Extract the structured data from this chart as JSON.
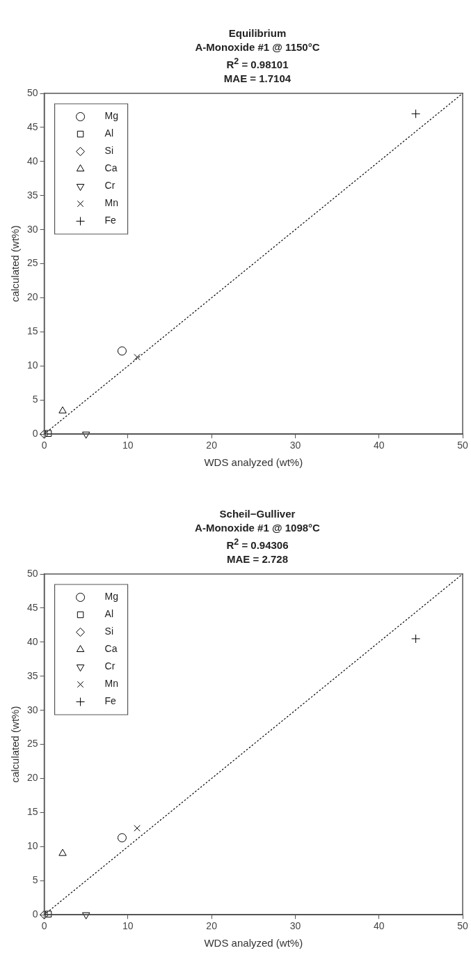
{
  "chart_data": [
    {
      "type": "scatter",
      "title": "Equilibrium\nA-Monoxide #1 @ 1150°C\nR$^{2}$ = 0.98101\nMAE = 1.7104",
      "xlabel": "WDS analyzed (wt%)",
      "ylabel": "calculated (wt%)",
      "xlim": [
        0,
        50
      ],
      "ylim": [
        0,
        50
      ],
      "xticks": [
        0,
        10,
        20,
        30,
        40,
        50
      ],
      "yticks": [
        0,
        5,
        10,
        15,
        20,
        25,
        30,
        35,
        40,
        45,
        50
      ],
      "grid": false,
      "legend": "top left",
      "series": [
        {
          "name": "Mg",
          "color": "#000000",
          "marker": "circle",
          "x": [
            9.3
          ],
          "values": [
            12.2
          ]
        },
        {
          "name": "Al",
          "color": "#000000",
          "marker": "square",
          "x": [
            0.5
          ],
          "values": [
            0.1
          ]
        },
        {
          "name": "Si",
          "color": "#000000",
          "marker": "diamond",
          "x": [
            0
          ],
          "values": [
            0
          ]
        },
        {
          "name": "Ca",
          "color": "#000000",
          "marker": "triangle",
          "x": [
            2.2
          ],
          "values": [
            3.4
          ]
        },
        {
          "name": "Cr",
          "color": "#000000",
          "marker": "triangle-down",
          "x": [
            5
          ],
          "values": [
            0
          ]
        },
        {
          "name": "Mn",
          "color": "#000000",
          "marker": "x",
          "x": [
            11.1
          ],
          "values": [
            11.3
          ]
        },
        {
          "name": "Fe",
          "color": "#000000",
          "marker": "plus",
          "x": [
            44.4
          ],
          "values": [
            47
          ]
        },
        {
          "type": "line",
          "color": "#000000",
          "line_style": "dotted",
          "marker": "none",
          "x": [
            0,
            50
          ],
          "values": [
            0,
            50
          ]
        }
      ]
    },
    {
      "type": "scatter",
      "title": "Scheil−Gulliver\nA-Monoxide #1 @ 1098°C\nR$^{2}$ = 0.94306\nMAE = 2.728",
      "xlabel": "WDS analyzed (wt%)",
      "ylabel": "calculated (wt%)",
      "xlim": [
        0,
        50
      ],
      "ylim": [
        0,
        50
      ],
      "xticks": [
        0,
        10,
        20,
        30,
        40,
        50
      ],
      "yticks": [
        0,
        5,
        10,
        15,
        20,
        25,
        30,
        35,
        40,
        45,
        50
      ],
      "grid": false,
      "legend": "top left",
      "series": [
        {
          "name": "Mg",
          "color": "#000000",
          "marker": "circle",
          "x": [
            9.3
          ],
          "values": [
            11.3
          ]
        },
        {
          "name": "Al",
          "color": "#000000",
          "marker": "square",
          "x": [
            0.5
          ],
          "values": [
            0.1
          ]
        },
        {
          "name": "Si",
          "color": "#000000",
          "marker": "diamond",
          "x": [
            0
          ],
          "values": [
            0
          ]
        },
        {
          "name": "Ca",
          "color": "#000000",
          "marker": "triangle",
          "x": [
            2.2
          ],
          "values": [
            9
          ]
        },
        {
          "name": "Cr",
          "color": "#000000",
          "marker": "triangle-down",
          "x": [
            5
          ],
          "values": [
            0
          ]
        },
        {
          "name": "Mn",
          "color": "#000000",
          "marker": "x",
          "x": [
            11.1
          ],
          "values": [
            12.7
          ]
        },
        {
          "name": "Fe",
          "color": "#000000",
          "marker": "plus",
          "x": [
            44.4
          ],
          "values": [
            40.5
          ]
        },
        {
          "type": "line",
          "color": "#000000",
          "line_style": "dotted",
          "marker": "none",
          "x": [
            0,
            50
          ],
          "values": [
            0,
            50
          ]
        }
      ]
    }
  ]
}
